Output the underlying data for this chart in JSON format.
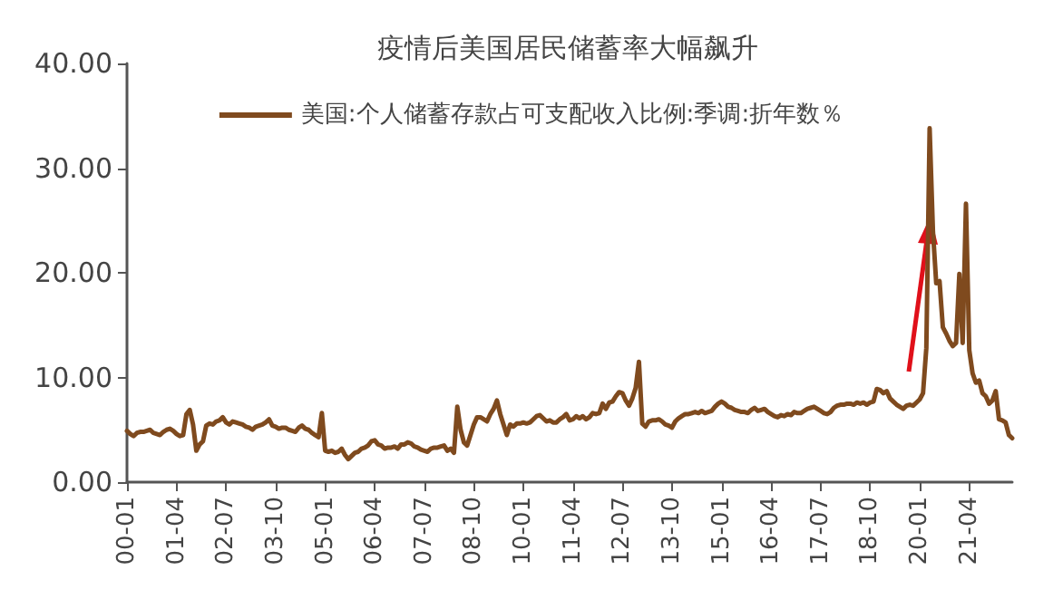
{
  "chart_data": {
    "type": "line",
    "title": "疫情后美国居民储蓄率大幅飙升",
    "categories": [
      "00-01",
      null,
      null,
      null,
      null,
      null,
      null,
      null,
      null,
      null,
      null,
      null,
      null,
      null,
      null,
      "01-04",
      null,
      null,
      null,
      null,
      null,
      null,
      null,
      null,
      null,
      null,
      null,
      null,
      null,
      null,
      "02-07",
      null,
      null,
      null,
      null,
      null,
      null,
      null,
      null,
      null,
      null,
      null,
      null,
      null,
      null,
      "03-10",
      null,
      null,
      null,
      null,
      null,
      null,
      null,
      null,
      null,
      null,
      null,
      null,
      null,
      null,
      "05-01",
      null,
      null,
      null,
      null,
      null,
      null,
      null,
      null,
      null,
      null,
      null,
      null,
      null,
      null,
      "06-04",
      null,
      null,
      null,
      null,
      null,
      null,
      null,
      null,
      null,
      null,
      null,
      null,
      null,
      null,
      "07-07",
      null,
      null,
      null,
      null,
      null,
      null,
      null,
      null,
      null,
      null,
      null,
      null,
      null,
      null,
      "08-10",
      null,
      null,
      null,
      null,
      null,
      null,
      null,
      null,
      null,
      null,
      null,
      null,
      null,
      null,
      "10-01",
      null,
      null,
      null,
      null,
      null,
      null,
      null,
      null,
      null,
      null,
      null,
      null,
      null,
      null,
      "11-04",
      null,
      null,
      null,
      null,
      null,
      null,
      null,
      null,
      null,
      null,
      null,
      null,
      null,
      null,
      "12-07",
      null,
      null,
      null,
      null,
      null,
      null,
      null,
      null,
      null,
      null,
      null,
      null,
      null,
      null,
      "13-10",
      null,
      null,
      null,
      null,
      null,
      null,
      null,
      null,
      null,
      null,
      null,
      null,
      null,
      null,
      "15-01",
      null,
      null,
      null,
      null,
      null,
      null,
      null,
      null,
      null,
      null,
      null,
      null,
      null,
      null,
      "16-04",
      null,
      null,
      null,
      null,
      null,
      null,
      null,
      null,
      null,
      null,
      null,
      null,
      null,
      null,
      "17-07",
      null,
      null,
      null,
      null,
      null,
      null,
      null,
      null,
      null,
      null,
      null,
      null,
      null,
      null,
      "18-10",
      null,
      null,
      null,
      null,
      null,
      null,
      null,
      null,
      null,
      null,
      null,
      null,
      null,
      null,
      "20-01",
      null,
      null,
      null,
      null,
      null,
      null,
      null,
      null,
      null,
      null,
      null,
      null,
      null,
      null,
      "21-04",
      null,
      null,
      null,
      null,
      null,
      null,
      null,
      null,
      null,
      null,
      null,
      null,
      null
    ],
    "series": [
      {
        "name": "美国:个人储蓄存款占可支配收入比例:季调:折年数％",
        "color": "#7f4a1e",
        "values": [
          4.9,
          4.6,
          4.4,
          4.7,
          4.8,
          4.8,
          4.9,
          5.0,
          4.7,
          4.6,
          4.5,
          4.8,
          5.0,
          5.1,
          4.9,
          4.6,
          4.4,
          4.5,
          6.5,
          6.9,
          5.5,
          3.0,
          3.6,
          3.9,
          5.4,
          5.6,
          5.5,
          5.8,
          5.9,
          6.2,
          5.7,
          5.5,
          5.8,
          5.7,
          5.6,
          5.5,
          5.3,
          5.2,
          5.0,
          5.3,
          5.4,
          5.5,
          5.7,
          6.0,
          5.4,
          5.3,
          5.1,
          5.2,
          5.2,
          5.0,
          4.9,
          4.8,
          5.2,
          5.4,
          5.1,
          5.0,
          4.7,
          4.5,
          4.3,
          6.6,
          3.0,
          2.9,
          3.0,
          2.8,
          2.9,
          3.2,
          2.6,
          2.2,
          2.5,
          2.8,
          2.9,
          3.2,
          3.3,
          3.5,
          3.9,
          4.0,
          3.6,
          3.5,
          3.2,
          3.3,
          3.3,
          3.4,
          3.2,
          3.6,
          3.6,
          3.8,
          3.7,
          3.4,
          3.3,
          3.1,
          3.0,
          2.9,
          3.2,
          3.3,
          3.3,
          3.4,
          3.5,
          3.0,
          3.2,
          2.8,
          7.2,
          5.0,
          3.8,
          3.5,
          4.5,
          5.5,
          6.2,
          6.2,
          6.0,
          5.8,
          6.5,
          7.0,
          7.8,
          6.5,
          5.5,
          4.5,
          5.5,
          5.3,
          5.6,
          5.6,
          5.7,
          5.6,
          5.7,
          6.0,
          6.3,
          6.4,
          6.1,
          5.8,
          5.9,
          5.7,
          5.7,
          6.0,
          6.2,
          6.5,
          5.9,
          6.0,
          6.3,
          6.1,
          6.3,
          6.0,
          6.2,
          6.6,
          6.5,
          6.6,
          7.5,
          7.0,
          7.6,
          7.7,
          8.2,
          8.6,
          8.5,
          7.8,
          7.3,
          8.0,
          9.0,
          11.5,
          5.6,
          5.3,
          5.8,
          5.9,
          5.9,
          6.0,
          5.8,
          5.5,
          5.4,
          5.2,
          5.8,
          6.1,
          6.3,
          6.5,
          6.5,
          6.6,
          6.7,
          6.6,
          6.8,
          6.6,
          6.7,
          6.8,
          7.2,
          7.5,
          7.7,
          7.5,
          7.2,
          7.1,
          6.9,
          6.8,
          6.7,
          6.7,
          6.6,
          6.9,
          7.1,
          6.8,
          6.9,
          7.0,
          6.7,
          6.5,
          6.3,
          6.2,
          6.4,
          6.3,
          6.5,
          6.4,
          6.7,
          6.6,
          6.6,
          6.8,
          7.0,
          7.1,
          7.2,
          7.0,
          6.8,
          6.6,
          6.5,
          6.7,
          7.1,
          7.3,
          7.4,
          7.4,
          7.5,
          7.5,
          7.4,
          7.6,
          7.5,
          7.6,
          7.4,
          7.6,
          7.7,
          8.9,
          8.8,
          8.5,
          8.7,
          8.0,
          7.7,
          7.4,
          7.2,
          7.0,
          7.3,
          7.4,
          7.3,
          7.6,
          7.9,
          8.5,
          12.8,
          33.8,
          24.0,
          19.0,
          19.2,
          14.8,
          14.2,
          13.5,
          13.0,
          13.3,
          19.9,
          13.3,
          26.6,
          12.6,
          10.4,
          9.5,
          9.7,
          8.5,
          8.2,
          7.5,
          7.8,
          8.7,
          6.0,
          5.9,
          5.7,
          4.5,
          4.2
        ]
      }
    ],
    "ylim": [
      0,
      40
    ],
    "yticks": [
      {
        "value": 0,
        "label": "0.00"
      },
      {
        "value": 10,
        "label": "10.00"
      },
      {
        "value": 20,
        "label": "20.00"
      },
      {
        "value": 30,
        "label": "30.00"
      },
      {
        "value": 40,
        "label": "40.00"
      }
    ],
    "legend": "top",
    "grid": false,
    "marker": "none",
    "line_style": "solid"
  }
}
